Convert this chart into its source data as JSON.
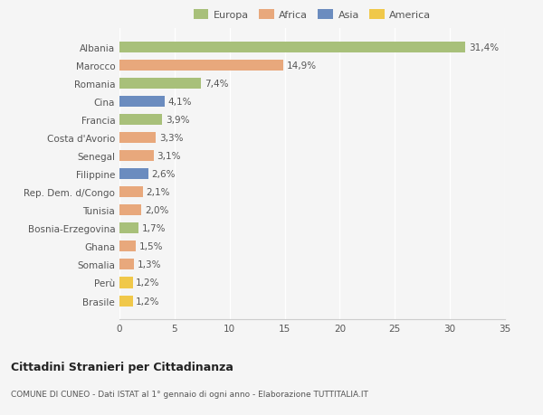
{
  "categories": [
    "Albania",
    "Marocco",
    "Romania",
    "Cina",
    "Francia",
    "Costa d'Avorio",
    "Senegal",
    "Filippine",
    "Rep. Dem. d/Congo",
    "Tunisia",
    "Bosnia-Erzegovina",
    "Ghana",
    "Somalia",
    "Perù",
    "Brasile"
  ],
  "values": [
    31.4,
    14.9,
    7.4,
    4.1,
    3.9,
    3.3,
    3.1,
    2.6,
    2.1,
    2.0,
    1.7,
    1.5,
    1.3,
    1.2,
    1.2
  ],
  "labels": [
    "31,4%",
    "14,9%",
    "7,4%",
    "4,1%",
    "3,9%",
    "3,3%",
    "3,1%",
    "2,6%",
    "2,1%",
    "2,0%",
    "1,7%",
    "1,5%",
    "1,3%",
    "1,2%",
    "1,2%"
  ],
  "continents": [
    "Europa",
    "Africa",
    "Europa",
    "Asia",
    "Europa",
    "Africa",
    "Africa",
    "Asia",
    "Africa",
    "Africa",
    "Europa",
    "Africa",
    "Africa",
    "America",
    "America"
  ],
  "continent_colors": {
    "Europa": "#a8c07a",
    "Africa": "#e8a87c",
    "Asia": "#6b8cbf",
    "America": "#f0c84a"
  },
  "legend_order": [
    "Europa",
    "Africa",
    "Asia",
    "America"
  ],
  "legend_colors": [
    "#a8c07a",
    "#e8a87c",
    "#6b8cbf",
    "#f0c84a"
  ],
  "title": "Cittadini Stranieri per Cittadinanza",
  "subtitle": "COMUNE DI CUNEO - Dati ISTAT al 1° gennaio di ogni anno - Elaborazione TUTTITALIA.IT",
  "xlim": [
    0,
    35
  ],
  "xticks": [
    0,
    5,
    10,
    15,
    20,
    25,
    30,
    35
  ],
  "background_color": "#f5f5f5",
  "grid_color": "#ffffff",
  "bar_height": 0.6,
  "label_fontsize": 7.5,
  "tick_fontsize": 7.5,
  "title_fontsize": 9,
  "subtitle_fontsize": 6.5
}
